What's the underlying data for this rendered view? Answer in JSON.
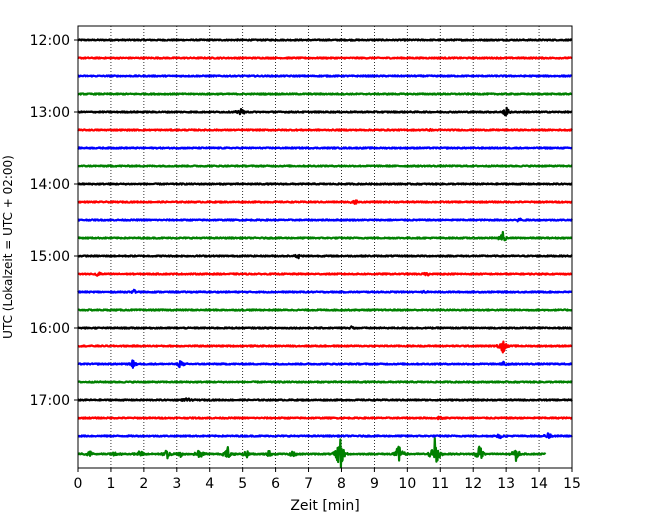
{
  "chart_data": {
    "type": "line",
    "title": "",
    "xlabel": "Zeit  [min]",
    "ylabel": "UTC (Lokalzeit = UTC + 02:00)",
    "xlim": [
      0,
      15
    ],
    "x_ticks": [
      "0",
      "1",
      "2",
      "3",
      "4",
      "5",
      "6",
      "7",
      "8",
      "9",
      "10",
      "11",
      "12",
      "13",
      "14",
      "15"
    ],
    "y_ticks": [
      {
        "label": "12:00",
        "row": 0
      },
      {
        "label": "13:00",
        "row": 4
      },
      {
        "label": "14:00",
        "row": 8
      },
      {
        "label": "15:00",
        "row": 12
      },
      {
        "label": "16:00",
        "row": 16
      },
      {
        "label": "17:00",
        "row": 20
      }
    ],
    "grid": "vertical dotted lines at each minute",
    "colors": {
      "black": "#000000",
      "red": "#ff0000",
      "blue": "#0000ff",
      "green": "#008000"
    },
    "series": [
      {
        "start_time": "12:00",
        "color": "#000000",
        "end_min": 15,
        "events": []
      },
      {
        "start_time": "12:15",
        "color": "#ff0000",
        "end_min": 15,
        "events": []
      },
      {
        "start_time": "12:30",
        "color": "#0000ff",
        "end_min": 15,
        "events": []
      },
      {
        "start_time": "12:45",
        "color": "#008000",
        "end_min": 15,
        "events": []
      },
      {
        "start_time": "13:00",
        "color": "#000000",
        "end_min": 15,
        "events": [
          {
            "t": 4.95,
            "amp": 0.4
          },
          {
            "t": 13.0,
            "amp": 0.6
          }
        ]
      },
      {
        "start_time": "13:15",
        "color": "#ff0000",
        "end_min": 15,
        "events": [
          {
            "t": 10.6,
            "amp": 0.2
          }
        ]
      },
      {
        "start_time": "13:30",
        "color": "#0000ff",
        "end_min": 15,
        "events": []
      },
      {
        "start_time": "13:45",
        "color": "#008000",
        "end_min": 15,
        "events": []
      },
      {
        "start_time": "14:00",
        "color": "#000000",
        "end_min": 15,
        "events": []
      },
      {
        "start_time": "14:15",
        "color": "#ff0000",
        "end_min": 15,
        "events": [
          {
            "t": 8.4,
            "amp": 0.4
          }
        ]
      },
      {
        "start_time": "14:30",
        "color": "#0000ff",
        "end_min": 15,
        "events": [
          {
            "t": 13.4,
            "amp": 0.3
          }
        ]
      },
      {
        "start_time": "14:45",
        "color": "#008000",
        "end_min": 15,
        "events": [
          {
            "t": 12.9,
            "amp": 0.6
          }
        ]
      },
      {
        "start_time": "15:00",
        "color": "#000000",
        "end_min": 15,
        "events": [
          {
            "t": 6.7,
            "amp": 0.25
          }
        ]
      },
      {
        "start_time": "15:15",
        "color": "#ff0000",
        "end_min": 15,
        "events": [
          {
            "t": 0.6,
            "amp": 0.35
          },
          {
            "t": 10.6,
            "amp": 0.2
          }
        ]
      },
      {
        "start_time": "15:30",
        "color": "#0000ff",
        "end_min": 15,
        "events": [
          {
            "t": 1.7,
            "amp": 0.2
          },
          {
            "t": 10.5,
            "amp": 0.2
          }
        ]
      },
      {
        "start_time": "15:45",
        "color": "#008000",
        "end_min": 15,
        "events": []
      },
      {
        "start_time": "16:00",
        "color": "#000000",
        "end_min": 15,
        "events": [
          {
            "t": 8.3,
            "amp": 0.2
          }
        ]
      },
      {
        "start_time": "16:15",
        "color": "#ff0000",
        "end_min": 15,
        "events": [
          {
            "t": 12.9,
            "amp": 0.8
          }
        ]
      },
      {
        "start_time": "16:30",
        "color": "#0000ff",
        "end_min": 15,
        "events": [
          {
            "t": 1.65,
            "amp": 0.5
          },
          {
            "t": 3.1,
            "amp": 0.5
          },
          {
            "t": 12.95,
            "amp": 0.4
          }
        ]
      },
      {
        "start_time": "16:45",
        "color": "#008000",
        "end_min": 15,
        "events": []
      },
      {
        "start_time": "17:00",
        "color": "#000000",
        "end_min": 15,
        "events": [
          {
            "t": 3.3,
            "amp": 0.25
          }
        ]
      },
      {
        "start_time": "17:15",
        "color": "#ff0000",
        "end_min": 15,
        "events": [
          {
            "t": 11.0,
            "amp": 0.2
          }
        ]
      },
      {
        "start_time": "17:30",
        "color": "#0000ff",
        "end_min": 15,
        "events": [
          {
            "t": 12.8,
            "amp": 0.35
          },
          {
            "t": 14.3,
            "amp": 0.35
          }
        ]
      },
      {
        "start_time": "17:45",
        "color": "#008000",
        "end_min": 14.2,
        "events": [
          {
            "t": 0.35,
            "amp": 0.4
          },
          {
            "t": 1.15,
            "amp": 0.3
          },
          {
            "t": 1.9,
            "amp": 0.5
          },
          {
            "t": 2.7,
            "amp": 0.6
          },
          {
            "t": 3.1,
            "amp": 0.4
          },
          {
            "t": 3.7,
            "amp": 0.6
          },
          {
            "t": 4.55,
            "amp": 0.8
          },
          {
            "t": 5.1,
            "amp": 0.5
          },
          {
            "t": 5.8,
            "amp": 0.5
          },
          {
            "t": 6.5,
            "amp": 0.5
          },
          {
            "t": 7.95,
            "amp": 2.4
          },
          {
            "t": 9.75,
            "amp": 1.2
          },
          {
            "t": 10.85,
            "amp": 2.6
          },
          {
            "t": 12.2,
            "amp": 1.0
          },
          {
            "t": 13.3,
            "amp": 0.8
          }
        ]
      }
    ]
  }
}
